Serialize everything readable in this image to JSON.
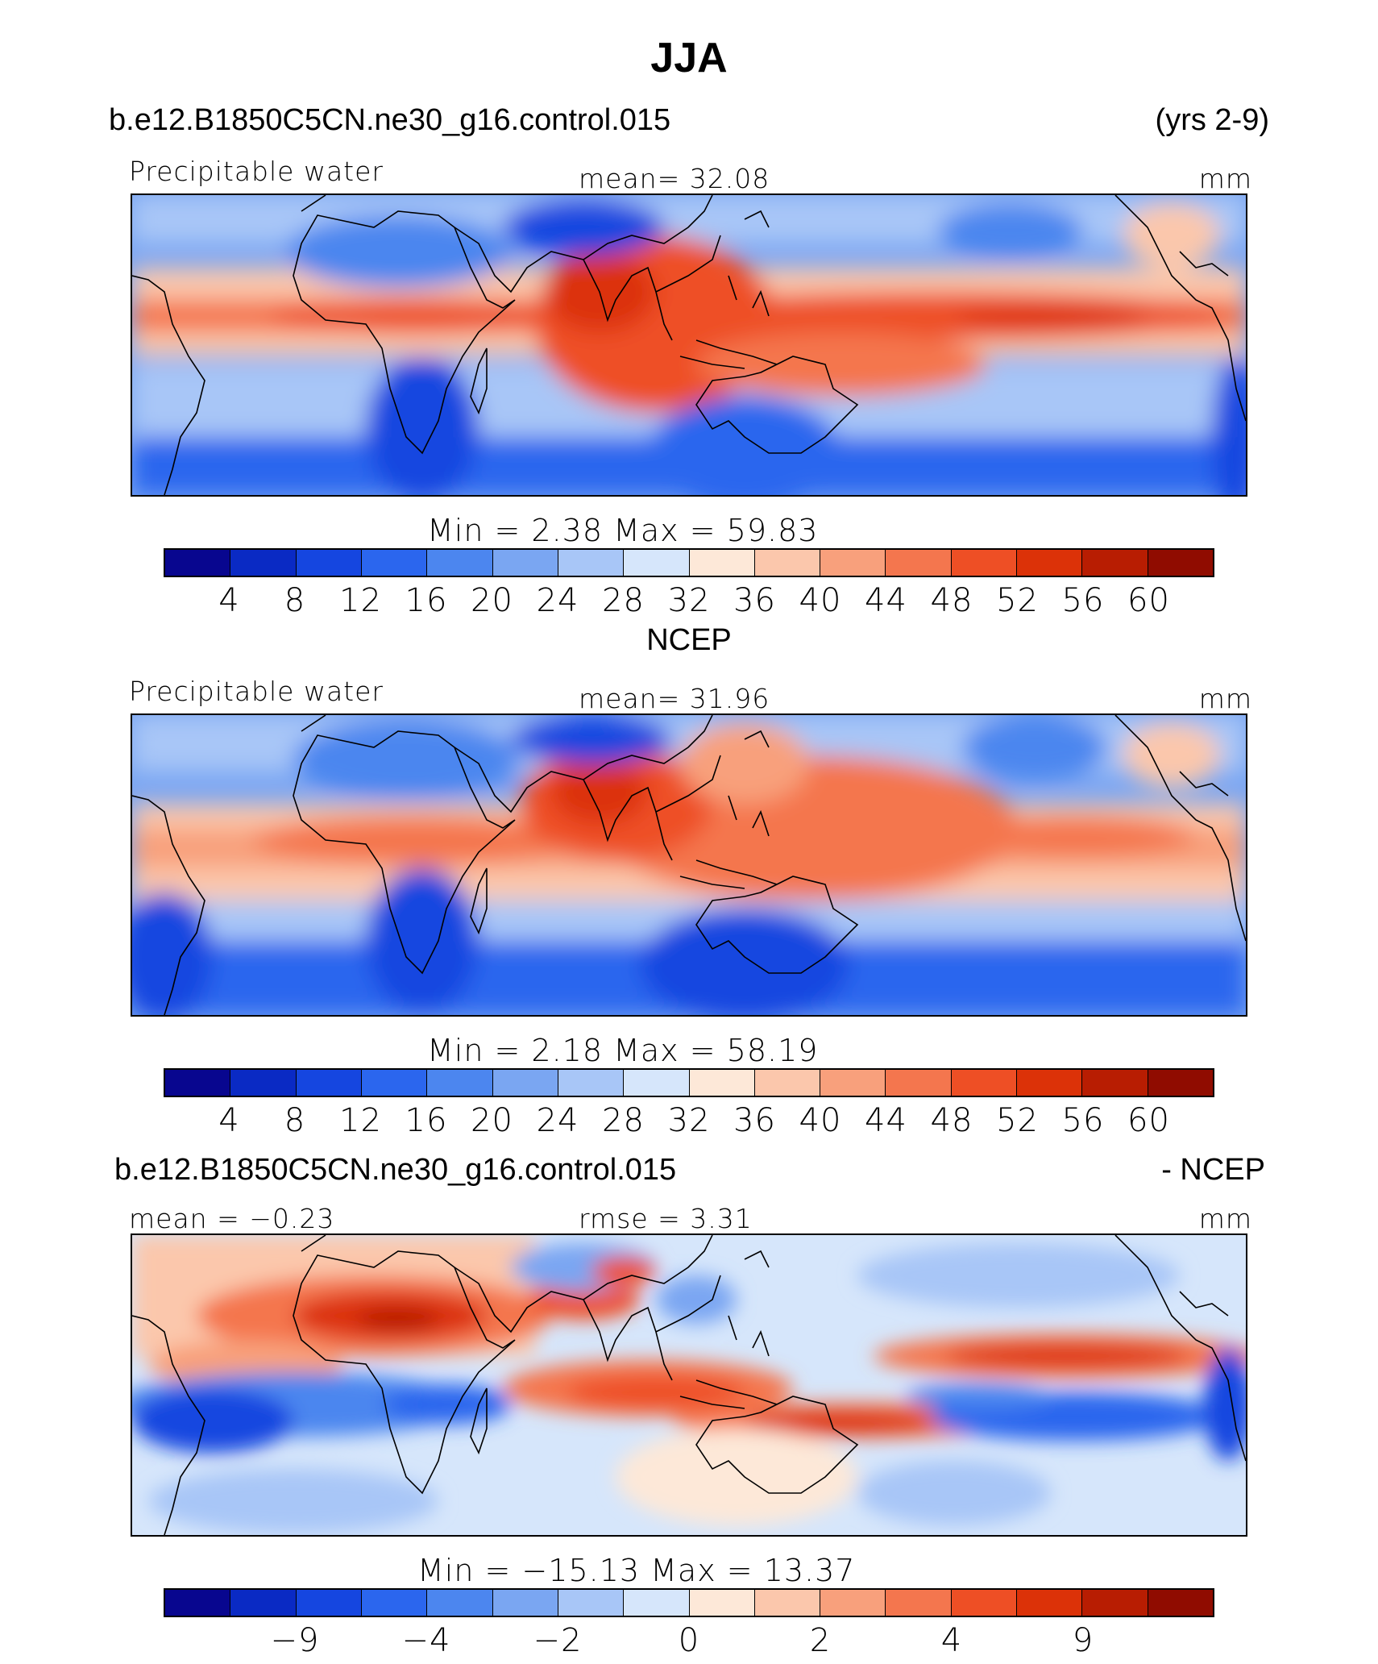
{
  "title": "JJA",
  "colors": {
    "palette": [
      "#08068f",
      "#0a2ac4",
      "#1546e0",
      "#2b66ee",
      "#4c86ef",
      "#7aa6f2",
      "#a8c6f7",
      "#d6e6fb",
      "#fde8d8",
      "#fbc7ac",
      "#f8a07c",
      "#f4764e",
      "#ee4f25",
      "#dc3208",
      "#b81d02",
      "#900c00"
    ],
    "coast": "#000000"
  },
  "panels": [
    {
      "case_left": "b.e12.B1850C5CN.ne30_g16.control.015",
      "case_right": "(yrs 2-9)",
      "variable": "Precipitable water",
      "center": "mean=   32.08",
      "units": "mm",
      "minmax": "Min  =     2.38  Max  =    59.83",
      "ticks": [
        "4",
        "8",
        "12",
        "16",
        "20",
        "24",
        "28",
        "32",
        "36",
        "40",
        "44",
        "48",
        "52",
        "56",
        "60"
      ]
    },
    {
      "case_left": "NCEP",
      "case_right": "",
      "variable": "Precipitable water",
      "center": "mean=   31.96",
      "units": "mm",
      "minmax": "Min  =     2.18  Max  =    58.19",
      "ticks": [
        "4",
        "8",
        "12",
        "16",
        "20",
        "24",
        "28",
        "32",
        "36",
        "40",
        "44",
        "48",
        "52",
        "56",
        "60"
      ]
    },
    {
      "case_left": "b.e12.B1850C5CN.ne30_g16.control.015",
      "case_right": "- NCEP",
      "variable": "mean =   −0.23",
      "center": "rmse =     3.31",
      "units": "mm",
      "minmax": "Min  = −15.13  Max  =    13.37",
      "ticks": [
        "−9",
        "−4",
        "−2",
        "0",
        "2",
        "4",
        "9"
      ]
    }
  ]
}
